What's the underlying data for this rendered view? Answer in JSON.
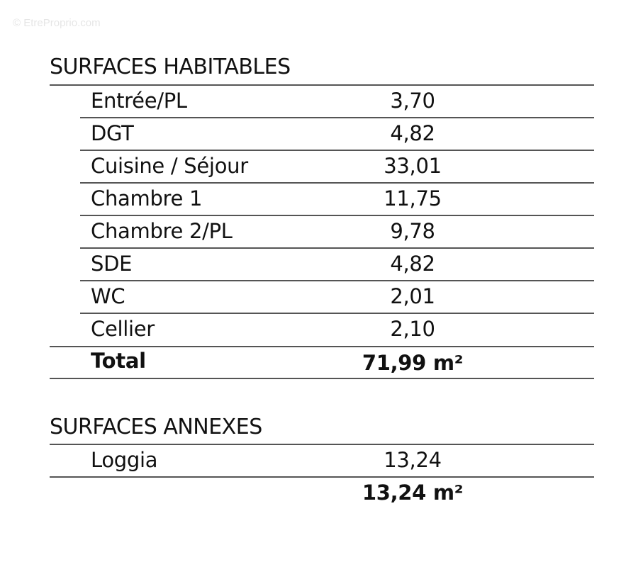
{
  "watermark": "© EtreProprio.com",
  "habitables": {
    "title": "SURFACES HABITABLES",
    "rows": [
      {
        "label": "Entrée/PL",
        "value": "3,70"
      },
      {
        "label": "DGT",
        "value": "4,82"
      },
      {
        "label": "Cuisine / Séjour",
        "value": "33,01"
      },
      {
        "label": "Chambre 1",
        "value": "11,75"
      },
      {
        "label": "Chambre 2/PL",
        "value": "9,78"
      },
      {
        "label": "SDE",
        "value": "4,82"
      },
      {
        "label": "WC",
        "value": "2,01"
      },
      {
        "label": "Cellier",
        "value": "2,10"
      }
    ],
    "total_label": "Total",
    "total_value": "71,99 m²"
  },
  "annexes": {
    "title": "SURFACES ANNEXES",
    "rows": [
      {
        "label": "Loggia",
        "value": "13,24"
      }
    ],
    "total_value": "13,24 m²"
  }
}
